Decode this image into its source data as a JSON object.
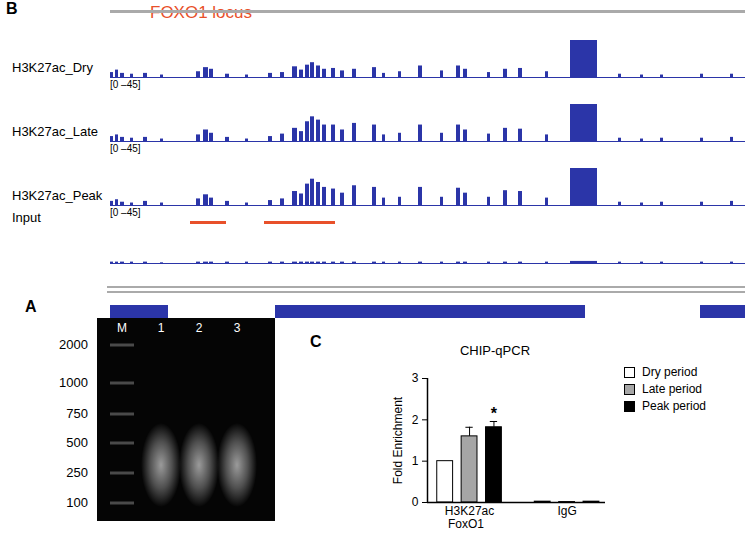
{
  "panel_b": {
    "label": "B",
    "title": "FOXO1 locus",
    "title_color": "#e8502a",
    "xlim": [
      110,
      745
    ],
    "ylim": [
      0,
      45
    ],
    "color": "#2b35a8",
    "tick_labels": false,
    "features": {
      "starts": [
        110,
        115,
        120,
        130,
        143,
        160,
        196,
        203,
        209,
        225,
        245,
        268,
        280,
        292,
        299,
        305,
        310,
        316,
        322,
        331,
        340,
        352,
        372,
        382,
        398,
        418,
        440,
        456,
        463,
        487,
        503,
        518,
        545,
        570,
        618,
        640,
        660,
        700,
        730
      ],
      "ends": [
        113,
        118,
        124,
        133,
        147,
        163,
        200,
        208,
        213,
        229,
        248,
        272,
        284,
        297,
        303,
        309,
        314,
        320,
        326,
        335,
        344,
        356,
        376,
        385,
        401,
        422,
        443,
        460,
        467,
        490,
        507,
        522,
        548,
        597,
        621,
        643,
        663,
        703,
        733
      ]
    },
    "tracks": [
      {
        "name": "H3K27ac_Dry",
        "range_label": "[0 –45]",
        "values": [
          6,
          9,
          5,
          4,
          5,
          3,
          7,
          12,
          10,
          4,
          3,
          5,
          6,
          13,
          9,
          15,
          18,
          14,
          10,
          11,
          8,
          10,
          12,
          5,
          7,
          14,
          8,
          14,
          10,
          6,
          10,
          11,
          7,
          45,
          4,
          3,
          3,
          4,
          4
        ]
      },
      {
        "name": "H3K27ac_Late",
        "range_label": "[0 –45]",
        "values": [
          6,
          8,
          5,
          4,
          5,
          3,
          8,
          14,
          10,
          5,
          3,
          6,
          9,
          16,
          12,
          24,
          30,
          26,
          20,
          20,
          14,
          22,
          20,
          8,
          10,
          20,
          10,
          20,
          14,
          9,
          16,
          15,
          8,
          45,
          4,
          3,
          4,
          4,
          5
        ]
      },
      {
        "name": "H3K27ac_Peak",
        "range_label": "[0 –45]",
        "values": [
          5,
          7,
          4,
          3,
          5,
          3,
          8,
          13,
          9,
          5,
          3,
          6,
          8,
          17,
          14,
          26,
          32,
          28,
          22,
          20,
          15,
          24,
          22,
          9,
          10,
          22,
          10,
          21,
          15,
          10,
          18,
          17,
          9,
          45,
          4,
          3,
          4,
          4,
          5
        ]
      },
      {
        "name": "Input",
        "values": [
          2,
          2,
          2,
          2,
          2,
          1,
          2,
          2,
          2,
          2,
          2,
          2,
          2,
          2,
          2,
          2,
          2,
          2,
          2,
          2,
          2,
          2,
          2,
          2,
          2,
          2,
          2,
          2,
          2,
          2,
          2,
          2,
          2,
          3,
          2,
          2,
          2,
          2,
          2
        ]
      }
    ],
    "highlights": {
      "color": "#e8502a",
      "regions": [
        [
          190,
          226
        ],
        [
          264,
          335
        ]
      ]
    },
    "gene": {
      "color": "#2b35a8",
      "exons": [
        [
          110,
          168
        ],
        [
          275,
          585
        ],
        [
          700,
          745
        ]
      ]
    }
  },
  "panel_a": {
    "label": "A",
    "lane_labels": [
      "M",
      "1",
      "2",
      "3"
    ],
    "ladder_labels": [
      2000,
      1000,
      750,
      500,
      250,
      100
    ]
  },
  "chart_data": {
    "type": "bar",
    "panel_label": "C",
    "title": "CHIP-qPCR",
    "x_label": "FoxO1",
    "y_label": "Fold Enrichment",
    "categories": [
      "H3K27ac",
      "IgG"
    ],
    "series": [
      {
        "name": "Dry period",
        "color": "#ffffff",
        "values": [
          1,
          0.02
        ],
        "errors": [
          0,
          0
        ]
      },
      {
        "name": "Late period",
        "color": "#a6a6a6",
        "values": [
          1.6,
          0.01
        ],
        "errors": [
          0.22,
          0
        ]
      },
      {
        "name": "Peak period",
        "color": "#000000",
        "values": [
          1.82,
          0.02
        ],
        "errors": [
          0.14,
          0
        ]
      }
    ],
    "annotations": [
      {
        "category": "H3K27ac",
        "series": "Peak period",
        "text": "*"
      }
    ],
    "ylim": [
      0,
      3
    ],
    "yticks": [
      0,
      1,
      2,
      3
    ],
    "grid": false,
    "legend": "top-right"
  }
}
